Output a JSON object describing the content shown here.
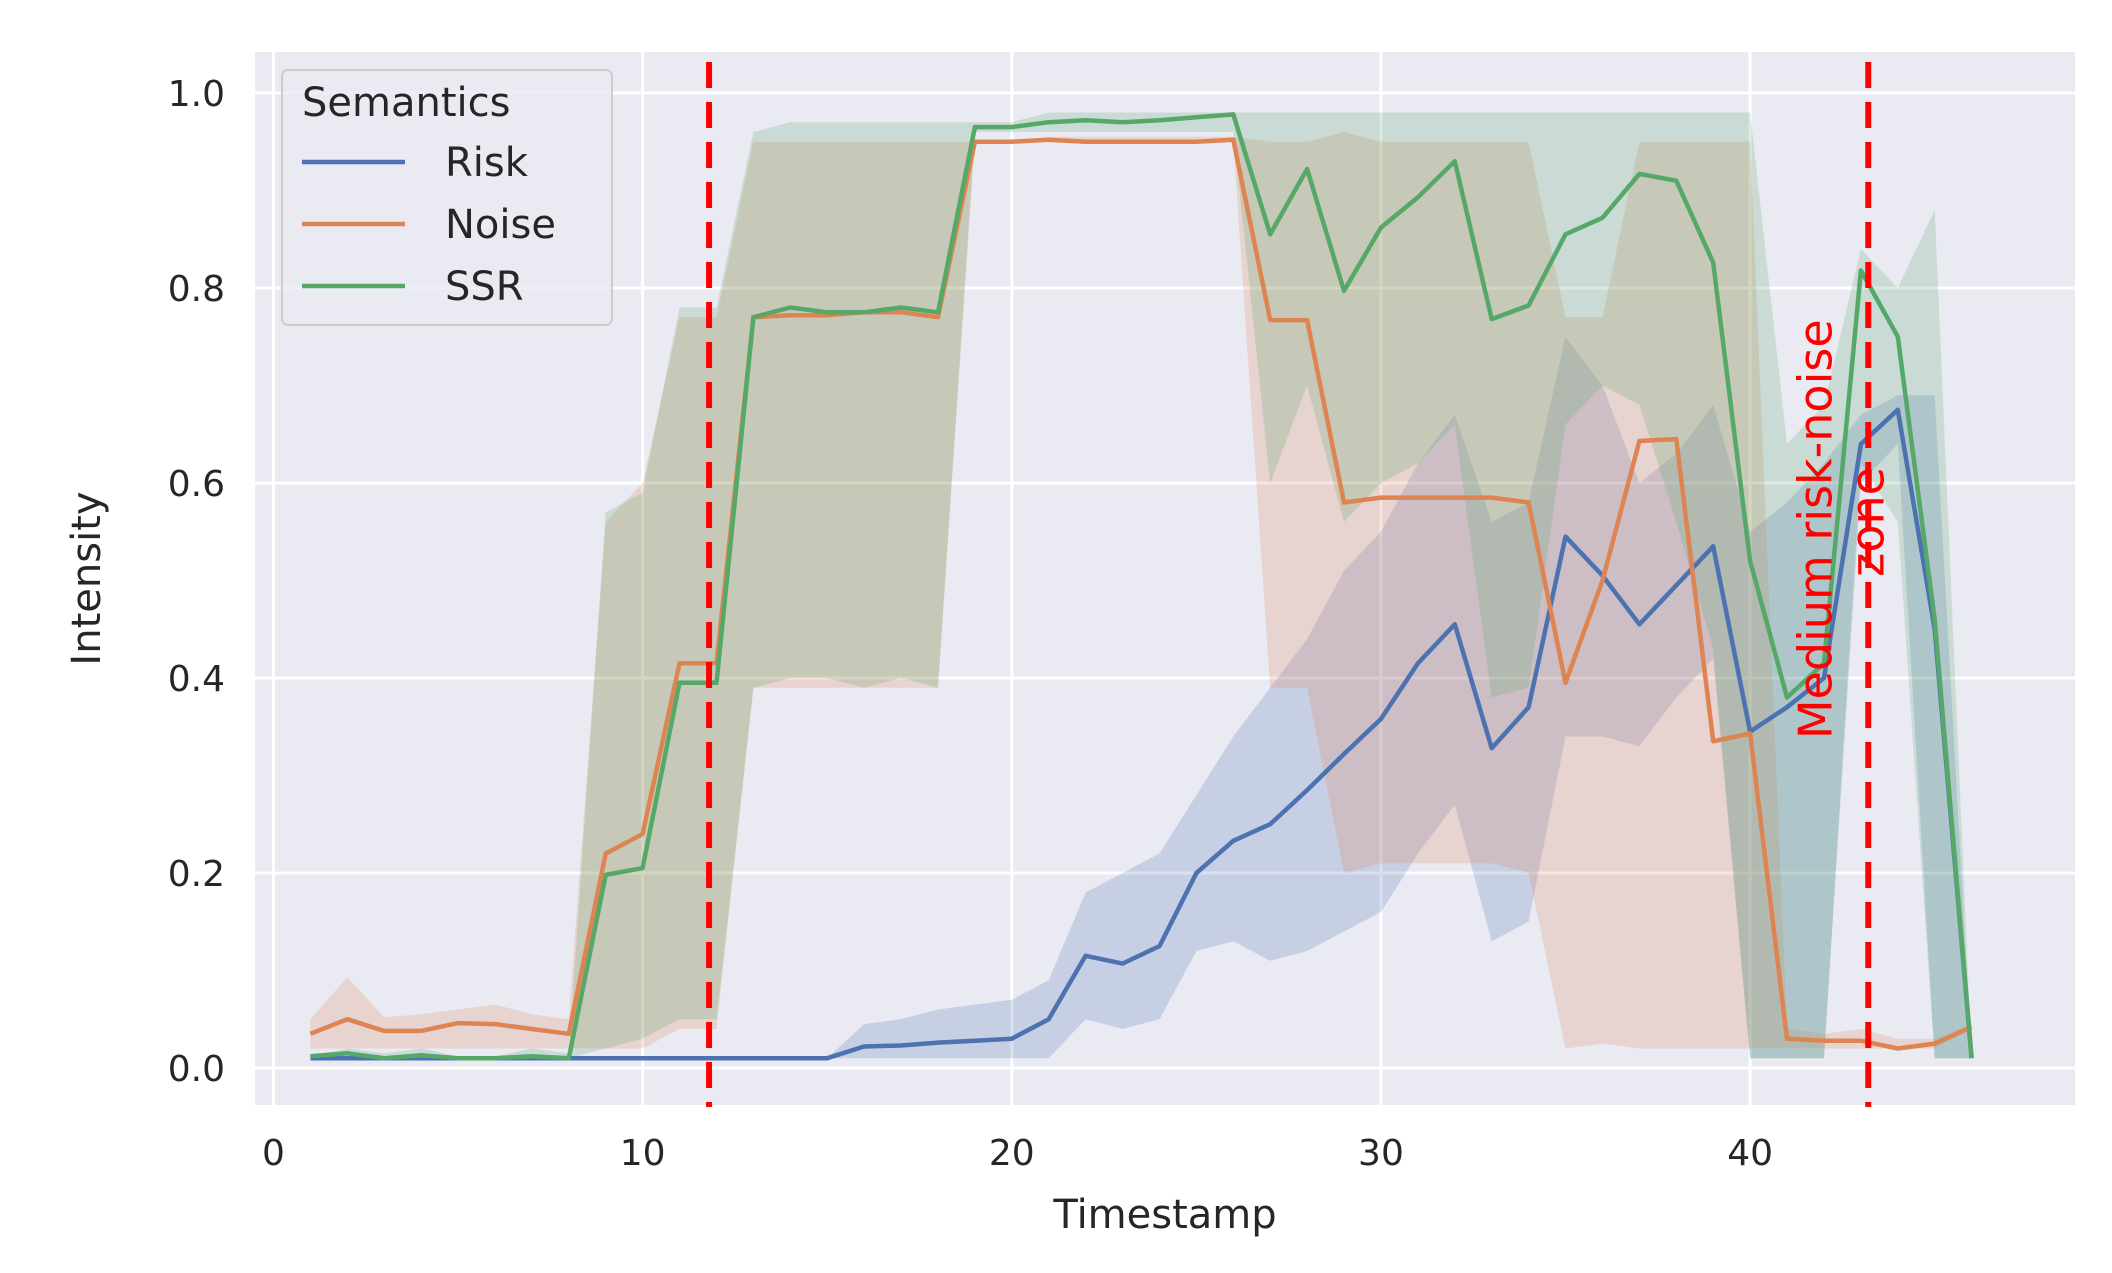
{
  "chart_data": {
    "type": "line",
    "title": "",
    "xlabel": "Timestamp",
    "ylabel": "Intensity",
    "xlim": [
      -0.5,
      48.8
    ],
    "ylim": [
      -0.038,
      1.042
    ],
    "xticks": [
      0,
      10,
      20,
      30,
      40
    ],
    "yticks": [
      0.0,
      0.2,
      0.4,
      0.6,
      0.8,
      1.0
    ],
    "xtick_labels": [
      "0",
      "10",
      "20",
      "30",
      "40"
    ],
    "ytick_labels": [
      "0.0",
      "0.2",
      "0.4",
      "0.6",
      "0.8",
      "1.0"
    ],
    "grid": true,
    "legend": {
      "title": "Semantics",
      "placement": "top-left"
    },
    "series": [
      {
        "name": "Risk",
        "color": "#4c72b0",
        "x": [
          1,
          2,
          3,
          4,
          5,
          6,
          7,
          8,
          9,
          10,
          11,
          12,
          13,
          14,
          15,
          16,
          17,
          18,
          19,
          20,
          21,
          22,
          23,
          24,
          25,
          26,
          27,
          28,
          29,
          30,
          31,
          32,
          33,
          34,
          35,
          36,
          37,
          38,
          39,
          40,
          41,
          42,
          43,
          44,
          45,
          46
        ],
        "values": [
          0.01,
          0.01,
          0.01,
          0.01,
          0.01,
          0.01,
          0.01,
          0.01,
          0.01,
          0.01,
          0.01,
          0.01,
          0.01,
          0.01,
          0.01,
          0.022,
          0.023,
          0.026,
          0.028,
          0.03,
          0.05,
          0.115,
          0.107,
          0.125,
          0.2,
          0.233,
          0.25,
          0.285,
          0.322,
          0.358,
          0.415,
          0.455,
          0.328,
          0.37,
          0.545,
          0.505,
          0.455,
          0.495,
          0.535,
          0.345,
          0.37,
          0.4,
          0.64,
          0.675,
          0.45,
          0.01
        ],
        "lower": [
          0.01,
          0.01,
          0.01,
          0.01,
          0.01,
          0.01,
          0.01,
          0.01,
          0.01,
          0.01,
          0.01,
          0.01,
          0.01,
          0.01,
          0.01,
          0.01,
          0.01,
          0.01,
          0.01,
          0.01,
          0.01,
          0.05,
          0.04,
          0.05,
          0.12,
          0.13,
          0.11,
          0.12,
          0.14,
          0.16,
          0.22,
          0.27,
          0.13,
          0.15,
          0.34,
          0.34,
          0.33,
          0.38,
          0.42,
          0.01,
          0.01,
          0.01,
          0.6,
          0.64,
          0.01,
          0.01
        ],
        "upper": [
          0.01,
          0.01,
          0.01,
          0.01,
          0.01,
          0.01,
          0.01,
          0.01,
          0.01,
          0.01,
          0.01,
          0.01,
          0.01,
          0.01,
          0.01,
          0.045,
          0.05,
          0.06,
          0.065,
          0.07,
          0.09,
          0.18,
          0.2,
          0.22,
          0.28,
          0.34,
          0.39,
          0.44,
          0.51,
          0.55,
          0.62,
          0.67,
          0.56,
          0.58,
          0.75,
          0.7,
          0.6,
          0.63,
          0.68,
          0.55,
          0.58,
          0.62,
          0.67,
          0.69,
          0.69,
          0.01
        ]
      },
      {
        "name": "Noise",
        "color": "#dd8452",
        "x": [
          1,
          2,
          3,
          4,
          5,
          6,
          7,
          8,
          9,
          10,
          11,
          12,
          13,
          14,
          15,
          16,
          17,
          18,
          19,
          20,
          21,
          22,
          23,
          24,
          25,
          26,
          27,
          28,
          29,
          30,
          31,
          32,
          33,
          34,
          35,
          36,
          37,
          38,
          39,
          40,
          41,
          42,
          43,
          44,
          45,
          46
        ],
        "values": [
          0.035,
          0.05,
          0.038,
          0.038,
          0.046,
          0.045,
          0.04,
          0.035,
          0.22,
          0.24,
          0.415,
          0.415,
          0.77,
          0.772,
          0.772,
          0.775,
          0.775,
          0.77,
          0.95,
          0.95,
          0.952,
          0.95,
          0.95,
          0.95,
          0.95,
          0.952,
          0.767,
          0.767,
          0.58,
          0.585,
          0.585,
          0.585,
          0.585,
          0.58,
          0.395,
          0.5,
          0.643,
          0.645,
          0.335,
          0.343,
          0.03,
          0.028,
          0.028,
          0.02,
          0.025,
          0.042
        ],
        "lower": [
          0.02,
          0.02,
          0.02,
          0.02,
          0.02,
          0.02,
          0.02,
          0.02,
          0.02,
          0.02,
          0.04,
          0.04,
          0.39,
          0.39,
          0.39,
          0.39,
          0.39,
          0.39,
          0.95,
          0.95,
          0.95,
          0.95,
          0.95,
          0.95,
          0.95,
          0.95,
          0.39,
          0.39,
          0.2,
          0.21,
          0.21,
          0.21,
          0.21,
          0.2,
          0.02,
          0.025,
          0.02,
          0.02,
          0.02,
          0.02,
          0.02,
          0.02,
          0.02,
          0.02,
          0.02,
          0.04
        ],
        "upper": [
          0.05,
          0.093,
          0.052,
          0.055,
          0.06,
          0.065,
          0.055,
          0.05,
          0.56,
          0.6,
          0.77,
          0.77,
          0.95,
          0.95,
          0.95,
          0.95,
          0.95,
          0.95,
          0.95,
          0.95,
          0.955,
          0.955,
          0.955,
          0.955,
          0.955,
          0.955,
          0.95,
          0.95,
          0.96,
          0.95,
          0.95,
          0.95,
          0.95,
          0.95,
          0.77,
          0.77,
          0.95,
          0.95,
          0.95,
          0.95,
          0.04,
          0.035,
          0.04,
          0.03,
          0.03,
          0.045
        ]
      },
      {
        "name": "SSR",
        "color": "#55a868",
        "x": [
          1,
          2,
          3,
          4,
          5,
          6,
          7,
          8,
          9,
          10,
          11,
          12,
          13,
          14,
          15,
          16,
          17,
          18,
          19,
          20,
          21,
          22,
          23,
          24,
          25,
          26,
          27,
          28,
          29,
          30,
          31,
          32,
          33,
          34,
          35,
          36,
          37,
          38,
          39,
          40,
          41,
          42,
          43,
          44,
          45,
          46
        ],
        "values": [
          0.012,
          0.015,
          0.01,
          0.013,
          0.01,
          0.01,
          0.012,
          0.01,
          0.198,
          0.205,
          0.395,
          0.395,
          0.77,
          0.78,
          0.775,
          0.775,
          0.78,
          0.775,
          0.965,
          0.965,
          0.97,
          0.972,
          0.97,
          0.972,
          0.975,
          0.978,
          0.855,
          0.922,
          0.797,
          0.862,
          0.893,
          0.93,
          0.768,
          0.782,
          0.855,
          0.872,
          0.917,
          0.91,
          0.826,
          0.52,
          0.38,
          0.415,
          0.818,
          0.75,
          0.46,
          0.01
        ],
        "lower": [
          0.01,
          0.01,
          0.01,
          0.01,
          0.01,
          0.01,
          0.01,
          0.01,
          0.02,
          0.03,
          0.05,
          0.05,
          0.39,
          0.4,
          0.4,
          0.39,
          0.4,
          0.39,
          0.96,
          0.96,
          0.96,
          0.96,
          0.96,
          0.96,
          0.96,
          0.96,
          0.6,
          0.7,
          0.56,
          0.6,
          0.62,
          0.66,
          0.38,
          0.39,
          0.66,
          0.7,
          0.68,
          0.56,
          0.43,
          0.01,
          0.01,
          0.01,
          0.62,
          0.56,
          0.01,
          0.01
        ],
        "upper": [
          0.012,
          0.02,
          0.015,
          0.02,
          0.012,
          0.012,
          0.02,
          0.015,
          0.57,
          0.59,
          0.78,
          0.78,
          0.96,
          0.97,
          0.97,
          0.97,
          0.97,
          0.97,
          0.97,
          0.97,
          0.98,
          0.98,
          0.98,
          0.98,
          0.98,
          0.98,
          0.98,
          0.98,
          0.98,
          0.98,
          0.98,
          0.98,
          0.98,
          0.98,
          0.98,
          0.98,
          0.98,
          0.98,
          0.98,
          0.98,
          0.64,
          0.68,
          0.84,
          0.8,
          0.88,
          0.01
        ]
      }
    ],
    "annotations": {
      "vlines": [
        {
          "x": 11.8,
          "color": "#ff0000",
          "style": "dashed"
        },
        {
          "x": 43.2,
          "color": "#ff0000",
          "style": "dashed"
        }
      ],
      "text": {
        "label": "Medium risk-noise zone",
        "line1": "Medium risk-noise",
        "line2": "zone",
        "color": "#ff0000",
        "x": 42.2,
        "y": 0.56,
        "rotation": -90
      }
    }
  }
}
